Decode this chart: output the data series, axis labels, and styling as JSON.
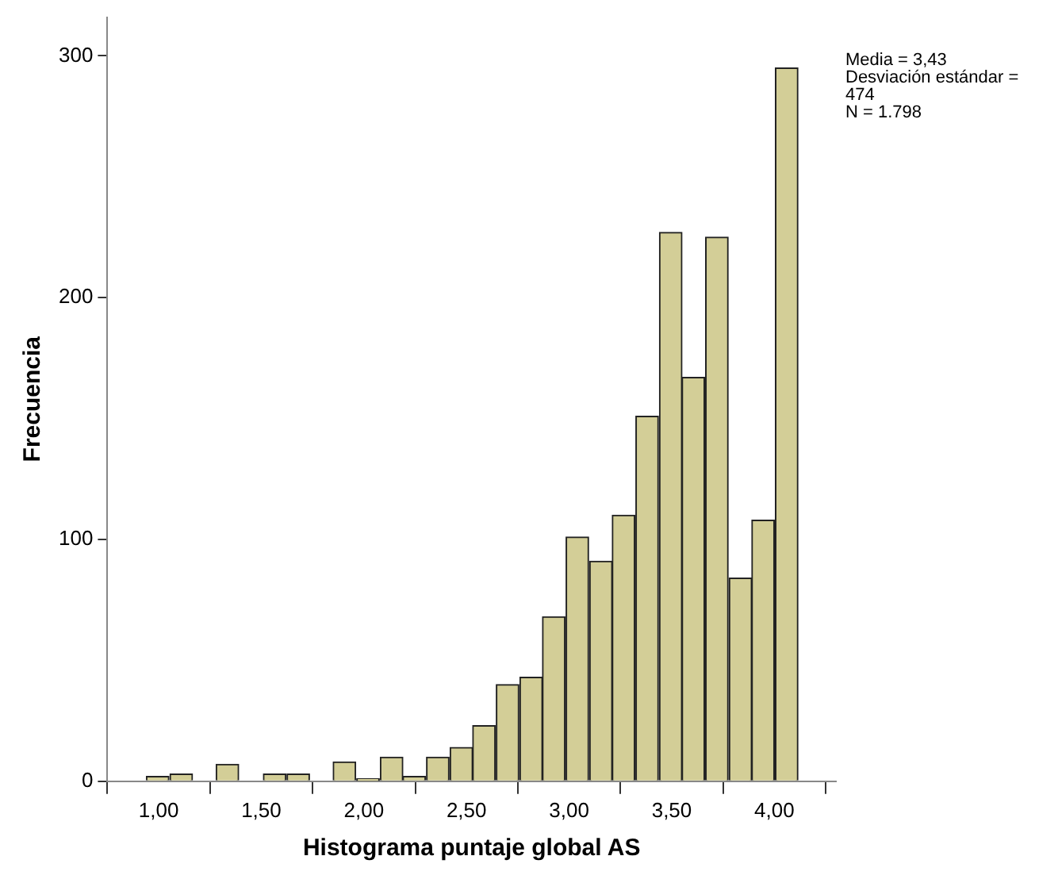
{
  "chart_data": {
    "type": "histogram",
    "xlabel": "Histograma puntaje global AS",
    "ylabel": "Frecuencia",
    "bins": [
      0.94,
      1.05,
      1.17,
      1.28,
      1.39,
      1.51,
      1.62,
      1.74,
      1.85,
      1.96,
      2.08,
      2.19,
      2.3,
      2.42,
      2.53,
      2.64,
      2.76,
      2.87,
      2.98,
      3.1,
      3.21,
      3.32,
      3.44,
      3.55,
      3.66,
      3.78,
      3.89,
      4.0,
      4.12
    ],
    "values": [
      2,
      3,
      0,
      7,
      0,
      3,
      3,
      0,
      8,
      1,
      10,
      2,
      10,
      14,
      23,
      40,
      43,
      68,
      101,
      91,
      110,
      151,
      227,
      167,
      225,
      84,
      108,
      295
    ],
    "color": "#d3ce97",
    "xlim": [
      0.75,
      4.3
    ],
    "ylim": [
      0,
      316
    ],
    "xticks": [
      {
        "value": 1,
        "label": "1,00"
      },
      {
        "value": 1.5,
        "label": "1,50"
      },
      {
        "value": 2,
        "label": "2,00"
      },
      {
        "value": 2.5,
        "label": "2,50"
      },
      {
        "value": 3,
        "label": "3,00"
      },
      {
        "value": 3.5,
        "label": "3,50"
      },
      {
        "value": 4,
        "label": "4,00"
      }
    ],
    "yticks": [
      0,
      100,
      200,
      300
    ],
    "grid": false,
    "legend": false,
    "annotations": [
      "Media = 3,43",
      "Desviación estándar = 474",
      "N = 1.798"
    ]
  }
}
